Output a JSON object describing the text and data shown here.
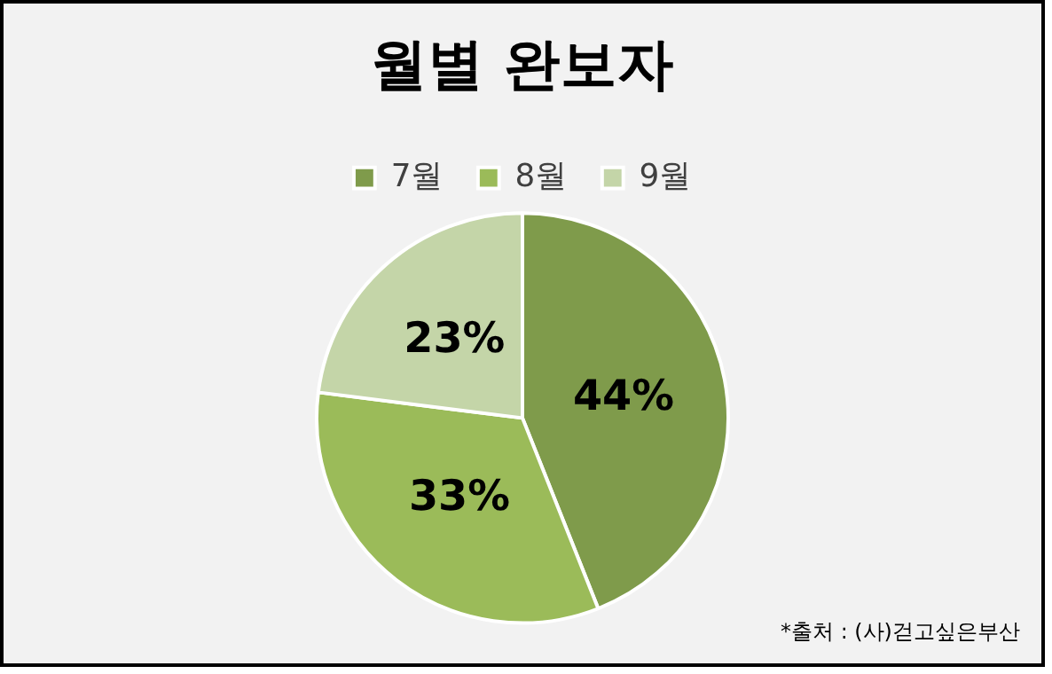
{
  "chart_data": {
    "type": "pie",
    "title": "월별 완보자",
    "categories": [
      "7월",
      "8월",
      "9월"
    ],
    "values": [
      44,
      33,
      23
    ],
    "colors": [
      "#7f9b4b",
      "#9bbb59",
      "#c4d5a8"
    ],
    "value_labels": [
      "44%",
      "33%",
      "23%"
    ],
    "legend": "top",
    "annotations": [
      "*출처 : (사)걷고싶은부산"
    ]
  }
}
